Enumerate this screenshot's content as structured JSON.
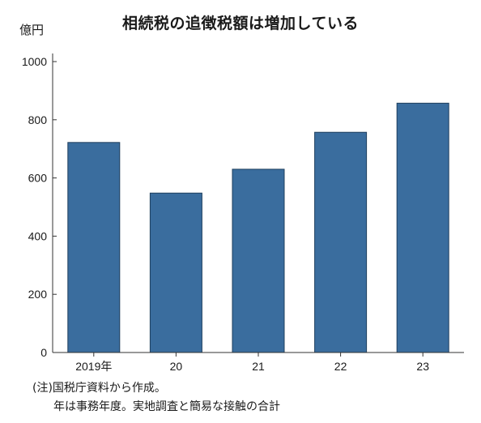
{
  "chart_data": {
    "type": "bar",
    "title": "相続税の追徴税額は増加している",
    "unit_label": "億円",
    "categories": [
      "2019年",
      "20",
      "21",
      "22",
      "23"
    ],
    "values": [
      722,
      548,
      630,
      757,
      857
    ],
    "ylim": [
      0,
      1000
    ],
    "yticks": [
      0,
      200,
      400,
      600,
      800,
      1000
    ],
    "bar_color": "#3a6d9e",
    "grid": false
  },
  "notes": [
    "(注)国税庁資料から作成。",
    "年は事務年度。実地調査と簡易な接触の合計"
  ]
}
